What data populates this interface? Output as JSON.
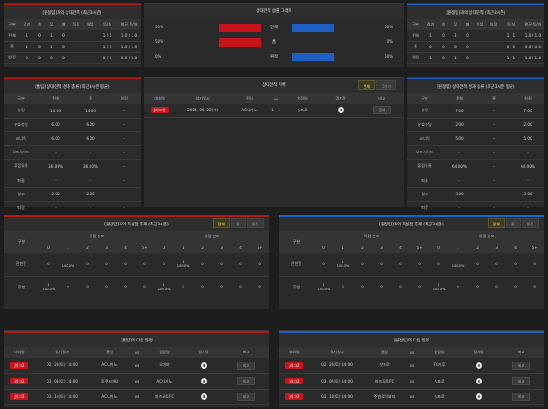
{
  "h2h": {
    "left_title": "[원정팀]과의 상대전적 (최근3시즌)",
    "right_title": "[원정팀]과의 상대전적 (최근3시즌)",
    "headers": [
      "구분",
      "경기",
      "승",
      "무",
      "패",
      "득점",
      "실점",
      "득/실",
      "평균 득/실"
    ],
    "rows": [
      {
        "label": "전체",
        "v": [
          "1",
          "0",
          "1",
          "0",
          "1 / 1",
          "1.0 / 1.0"
        ]
      },
      {
        "label": "홈",
        "v": [
          "1",
          "0",
          "1",
          "0",
          "1 / 1",
          "1.0 / 1.0"
        ]
      },
      {
        "label": "원정",
        "v": [
          "0",
          "0",
          "0",
          "0",
          "0 / 0",
          "0.0 / 0.0"
        ]
      }
    ],
    "rows_right": [
      {
        "label": "전체",
        "v": [
          "1",
          "0",
          "1",
          "0",
          "1 / 1",
          "1.0 / 1.0"
        ]
      },
      {
        "label": "홈",
        "v": [
          "0",
          "0",
          "0",
          "0",
          "0 / 0",
          "0.0 / 0.0"
        ]
      },
      {
        "label": "원정",
        "v": [
          "1",
          "0",
          "1",
          "0",
          "1 / 1",
          "1.0 / 1.0"
        ]
      }
    ]
  },
  "graph": {
    "title": "상대전적 승률 그래프",
    "rows": [
      {
        "label": "전체",
        "left_pct": "50%",
        "right_pct": "50%",
        "left_frac": 1.0,
        "right_frac": 1.0
      },
      {
        "label": "홈",
        "left_pct": "50%",
        "right_pct": "0%",
        "left_frac": 1.0,
        "right_frac": 0
      },
      {
        "label": "원정",
        "left_pct": "0%",
        "right_pct": "50%",
        "left_frac": 0,
        "right_frac": 1.0
      }
    ],
    "colors": {
      "left": "#c8151d",
      "right": "#1e5fc4"
    }
  },
  "result_stats": {
    "left_title": "[홈팀] 상대전적 경과 종류 (최근3시즌 평균)",
    "right_title": "[원정팀] 상대전적 경과 종류 (최근3시즌 평균)",
    "headers": [
      "구분",
      "전체",
      "홈",
      "원정"
    ],
    "rows_left": [
      {
        "label": "슈팅",
        "v": [
          "14.00",
          "14.00",
          "-"
        ]
      },
      {
        "label": "유효슈팅",
        "v": [
          "6.00",
          "6.00",
          "-"
        ]
      },
      {
        "label": "코너킥",
        "v": [
          "6.00",
          "6.00",
          "-"
        ]
      },
      {
        "label": "오프사이드",
        "v": [
          "-",
          "-",
          "-"
        ]
      },
      {
        "label": "볼점유율",
        "v": [
          "36.00%",
          "36.00%",
          "-"
        ]
      },
      {
        "label": "파울",
        "v": [
          "-",
          "-",
          "-"
        ]
      },
      {
        "label": "경고",
        "v": [
          "2.00",
          "2.00",
          "-"
        ]
      },
      {
        "label": "퇴장",
        "v": [
          "-",
          "-",
          "-"
        ]
      }
    ],
    "rows_right": [
      {
        "label": "슈팅",
        "v": [
          "7.00",
          "-",
          "7.00"
        ]
      },
      {
        "label": "유효슈팅",
        "v": [
          "2.00",
          "-",
          "2.00"
        ]
      },
      {
        "label": "코너킥",
        "v": [
          "5.00",
          "-",
          "5.00"
        ]
      },
      {
        "label": "오프사이드",
        "v": [
          "-",
          "-",
          "-"
        ]
      },
      {
        "label": "볼점유율",
        "v": [
          "64.00%",
          "-",
          "64.00%"
        ]
      },
      {
        "label": "파울",
        "v": [
          "-",
          "-",
          "-"
        ]
      },
      {
        "label": "경고",
        "v": [
          "3.00",
          "-",
          "3.00"
        ]
      },
      {
        "label": "퇴장",
        "v": [
          "-",
          "-",
          "-"
        ]
      }
    ]
  },
  "records": {
    "title": "상대전적 기록",
    "toggle": [
      "전체",
      "5경기"
    ],
    "headers": [
      "대회명",
      "경기일시",
      "홈팀",
      "vs",
      "원정팀",
      "경기장",
      "비고"
    ],
    "rows": [
      {
        "league": "J리그컵",
        "date": "2024. 05. 22(수)",
        "home": "AC니가노",
        "score": "1 - 1",
        "away": "삿포로",
        "note": "결과"
      }
    ]
  },
  "goal_dist": {
    "left_title": "[원정팀]과의 득실점 통계 (최근3시즌)",
    "right_title": "[원정팀]과의 득실점 통계 (최근3시즌)",
    "toggle": [
      "전체",
      "홈",
      "원정"
    ],
    "group_scored": "득점 분포",
    "group_conceded": "실점 분포",
    "cols": [
      "0",
      "1",
      "2",
      "3",
      "4",
      "5+"
    ],
    "row_labels": [
      "전반전",
      "후반"
    ],
    "left": {
      "first": {
        "scored": [
          "0",
          "1\n100.0%",
          "0",
          "0",
          "0",
          "0"
        ],
        "conceded": [
          "0",
          "1\n100.0%",
          "0",
          "0",
          "0",
          "0"
        ]
      },
      "second": {
        "scored": [
          "1\n100.0%",
          "0",
          "0",
          "0",
          "0",
          "0"
        ],
        "conceded": [
          "1\n100.0%",
          "0",
          "0",
          "0",
          "0",
          "0"
        ]
      }
    },
    "right": {
      "first": {
        "scored": [
          "0",
          "1\n100.0%",
          "0",
          "0",
          "0",
          "0"
        ],
        "conceded": [
          "0",
          "1\n100.0%",
          "0",
          "0",
          "0",
          "0"
        ]
      },
      "second": {
        "scored": [
          "1\n100.0%",
          "0",
          "0",
          "0",
          "0",
          "0"
        ],
        "conceded": [
          "1\n100.0%",
          "0",
          "0",
          "0",
          "0",
          "0"
        ]
      }
    }
  },
  "next": {
    "left_title": "[홈팀]의 다음 일정",
    "right_title": "[원정팀]의 다음 일정",
    "headers": [
      "대회명",
      "경기일시",
      "홈팀",
      "vs",
      "원정팀",
      "경기장",
      "비고"
    ],
    "left_rows": [
      {
        "league": "J리그2",
        "date": "02. 28(토) 14:00",
        "home": "AC니가노",
        "away": "오마야",
        "note": "비교"
      },
      {
        "league": "J리그2",
        "date": "03. 08(토) 14:00",
        "home": "후쿠시마U",
        "away": "AC니가노",
        "note": "비교"
      },
      {
        "league": "J리그2",
        "date": "03. 14(토) 14:00",
        "home": "AC니가노",
        "away": "미즈모토FC",
        "note": "비교"
      }
    ],
    "right_rows": [
      {
        "league": "J리그2",
        "date": "02. 28(토) 14:00",
        "home": "삿포로",
        "away": "FC기후",
        "note": "비교"
      },
      {
        "league": "J리그2",
        "date": "03. 07(토) 14:00",
        "home": "마즈모토FC",
        "away": "삿포로",
        "note": "비교"
      },
      {
        "league": "J리그2",
        "date": "03. 14(토) 14:00",
        "home": "주빌로이와타",
        "away": "삿포로",
        "note": "비교"
      }
    ]
  }
}
